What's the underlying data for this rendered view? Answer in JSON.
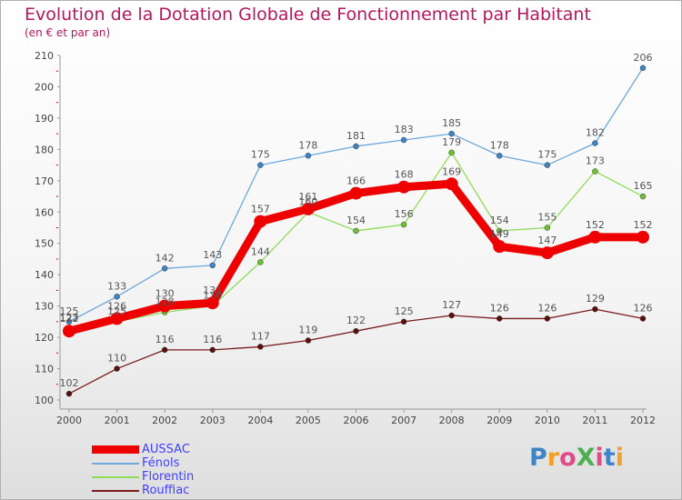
{
  "title": "Evolution de la Dotation Globale de Fonctionnement par Habitant",
  "subtitle": "(en € et par an)",
  "logo": {
    "text": "ProXiti",
    "letters": [
      "P",
      "r",
      "o",
      "X",
      "i",
      "t",
      "i"
    ]
  },
  "colors": {
    "title": "#b5175e",
    "axis": "#999999",
    "tick_dash": "#cc0000",
    "legend_text": "#4040ff"
  },
  "chart_data": {
    "type": "line",
    "title": "Evolution de la Dotation Globale de Fonctionnement par Habitant",
    "subtitle": "(en € et par an)",
    "xlabel": "",
    "ylabel": "",
    "x": [
      "2000",
      "2001",
      "2002",
      "2003",
      "2004",
      "2005",
      "2006",
      "2007",
      "2008",
      "2009",
      "2010",
      "2011",
      "2012"
    ],
    "yticks": [
      "100",
      "110",
      "120",
      "130",
      "140",
      "150",
      "160",
      "170",
      "180",
      "190",
      "200",
      "210"
    ],
    "ylim": [
      100,
      210
    ],
    "grid": false,
    "legend_position": "bottom-left",
    "series": [
      {
        "name": "Rouffiac",
        "color": "#7a1c1c",
        "marker": "#5a0f0f",
        "emphasis": false,
        "values": [
          102,
          110,
          116,
          116,
          117,
          119,
          122,
          125,
          127,
          126,
          126,
          129,
          126
        ],
        "labels": [
          "102",
          "110",
          "116",
          "116",
          "117",
          "119",
          "122",
          "125",
          "127",
          "126",
          "126",
          "129",
          "126"
        ]
      },
      {
        "name": "Florentin",
        "color": "#8fdc5a",
        "marker": "#6fc035",
        "emphasis": false,
        "values": [
          123,
          125,
          128,
          130,
          144,
          160,
          154,
          156,
          179,
          154,
          155,
          173,
          165
        ],
        "labels": [
          "123",
          "125",
          "128",
          "130",
          "144",
          "160",
          "154",
          "156",
          "179",
          "154",
          "155",
          "173",
          "165"
        ]
      },
      {
        "name": "Fénols",
        "color": "#6fa8dc",
        "marker": "#3d85c6",
        "emphasis": false,
        "values": [
          125,
          133,
          142,
          143,
          175,
          178,
          181,
          183,
          185,
          178,
          175,
          182,
          206
        ],
        "labels": [
          "125",
          "133",
          "142",
          "143",
          "175",
          "178",
          "181",
          "183",
          "185",
          "178",
          "175",
          "182",
          "206"
        ]
      },
      {
        "name": "AUSSAC",
        "color": "#ee0000",
        "marker": "#ee0000",
        "emphasis": true,
        "values": [
          122,
          126,
          130,
          131,
          157,
          161,
          166,
          168,
          169,
          149,
          147,
          152,
          152
        ],
        "labels": [
          "122",
          "126",
          "130",
          "131",
          "157",
          "161",
          "166",
          "168",
          "169",
          "149",
          "147",
          "152",
          "152"
        ]
      }
    ],
    "legend_order": [
      "AUSSAC",
      "Fénols",
      "Florentin",
      "Rouffiac"
    ]
  }
}
